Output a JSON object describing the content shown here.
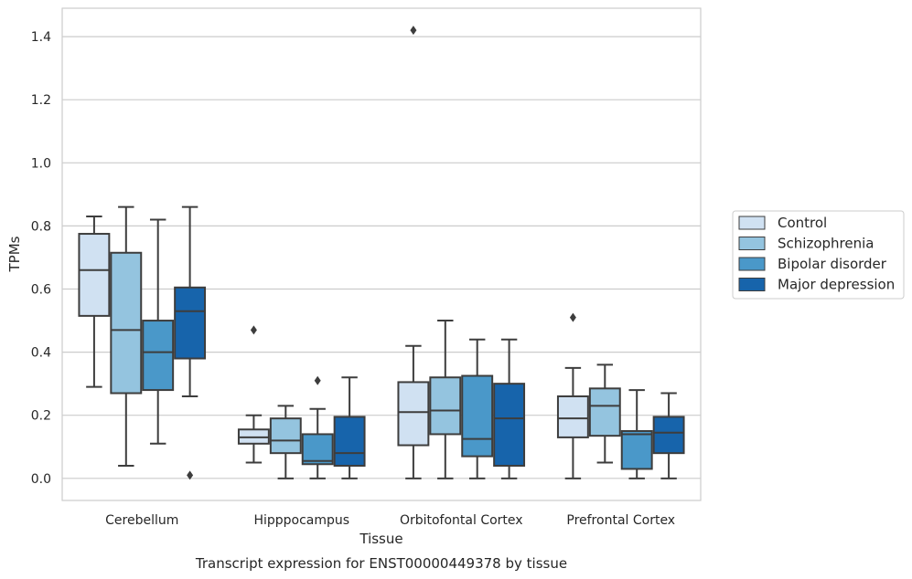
{
  "chart_data": {
    "type": "box",
    "title": "",
    "caption": "Transcript expression for ENST00000449378 by tissue",
    "xlabel": "Tissue",
    "ylabel": "TPMs",
    "ylim": [
      -0.07,
      1.49
    ],
    "yticks": [
      0.0,
      0.2,
      0.4,
      0.6,
      0.8,
      1.0,
      1.2,
      1.4
    ],
    "ytick_labels": [
      "0.0",
      "0.2",
      "0.4",
      "0.6",
      "0.8",
      "1.0",
      "1.2",
      "1.4"
    ],
    "grid": true,
    "legend_position": "right",
    "categories": [
      "Cerebellum",
      "Hipppocampus",
      "Orbitofontal Cortex",
      "Prefrontal Cortex"
    ],
    "series": [
      {
        "name": "Control",
        "color": "#d0e1f2",
        "boxes": [
          {
            "whislo": 0.29,
            "q1": 0.515,
            "med": 0.66,
            "q3": 0.775,
            "whishi": 0.83,
            "fliers": []
          },
          {
            "whislo": 0.05,
            "q1": 0.11,
            "med": 0.13,
            "q3": 0.155,
            "whishi": 0.2,
            "fliers": [
              0.47
            ]
          },
          {
            "whislo": 0.0,
            "q1": 0.105,
            "med": 0.21,
            "q3": 0.305,
            "whishi": 0.42,
            "fliers": [
              1.42
            ]
          },
          {
            "whislo": 0.0,
            "q1": 0.13,
            "med": 0.19,
            "q3": 0.26,
            "whishi": 0.35,
            "fliers": [
              0.51
            ]
          }
        ]
      },
      {
        "name": "Schizophrenia",
        "color": "#94c4df",
        "boxes": [
          {
            "whislo": 0.04,
            "q1": 0.27,
            "med": 0.47,
            "q3": 0.715,
            "whishi": 0.86,
            "fliers": []
          },
          {
            "whislo": 0.0,
            "q1": 0.08,
            "med": 0.12,
            "q3": 0.19,
            "whishi": 0.23,
            "fliers": []
          },
          {
            "whislo": 0.0,
            "q1": 0.14,
            "med": 0.215,
            "q3": 0.32,
            "whishi": 0.5,
            "fliers": []
          },
          {
            "whislo": 0.05,
            "q1": 0.135,
            "med": 0.23,
            "q3": 0.285,
            "whishi": 0.36,
            "fliers": []
          }
        ]
      },
      {
        "name": "Bipolar disorder",
        "color": "#4a98c9",
        "boxes": [
          {
            "whislo": 0.11,
            "q1": 0.28,
            "med": 0.4,
            "q3": 0.5,
            "whishi": 0.82,
            "fliers": []
          },
          {
            "whislo": 0.0,
            "q1": 0.045,
            "med": 0.055,
            "q3": 0.14,
            "whishi": 0.22,
            "fliers": [
              0.31
            ]
          },
          {
            "whislo": 0.0,
            "q1": 0.07,
            "med": 0.125,
            "q3": 0.325,
            "whishi": 0.44,
            "fliers": []
          },
          {
            "whislo": 0.0,
            "q1": 0.03,
            "med": 0.14,
            "q3": 0.15,
            "whishi": 0.28,
            "fliers": []
          }
        ]
      },
      {
        "name": "Major depression",
        "color": "#1764ab",
        "boxes": [
          {
            "whislo": 0.26,
            "q1": 0.38,
            "med": 0.53,
            "q3": 0.605,
            "whishi": 0.86,
            "fliers": [
              0.01
            ]
          },
          {
            "whislo": 0.0,
            "q1": 0.04,
            "med": 0.08,
            "q3": 0.195,
            "whishi": 0.32,
            "fliers": []
          },
          {
            "whislo": 0.0,
            "q1": 0.04,
            "med": 0.19,
            "q3": 0.3,
            "whishi": 0.44,
            "fliers": []
          },
          {
            "whislo": 0.0,
            "q1": 0.08,
            "med": 0.145,
            "q3": 0.195,
            "whishi": 0.27,
            "fliers": []
          }
        ]
      }
    ],
    "style": {
      "line_color": "#3d3d3d",
      "grid_color": "#cccccc",
      "frame_color": "#cccccc",
      "legend_border": "#cccccc"
    }
  }
}
